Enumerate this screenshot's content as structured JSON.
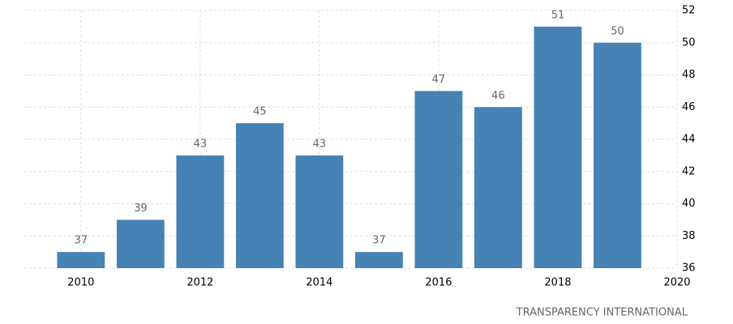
{
  "chart_data": {
    "type": "bar",
    "x": [
      2010,
      2011,
      2012,
      2013,
      2014,
      2015,
      2016,
      2017,
      2018,
      2019
    ],
    "values": [
      37,
      39,
      43,
      45,
      43,
      37,
      47,
      46,
      51,
      50
    ],
    "color": "#4682b4",
    "xlim": [
      2009.05,
      2020
    ],
    "xticks": [
      2010,
      2012,
      2014,
      2016,
      2018,
      2020
    ],
    "ylim": [
      36,
      52
    ],
    "yticks": [
      36,
      38,
      40,
      42,
      44,
      46,
      48,
      50,
      52
    ],
    "grid": true,
    "source": "TRANSPARENCY INTERNATIONAL"
  }
}
